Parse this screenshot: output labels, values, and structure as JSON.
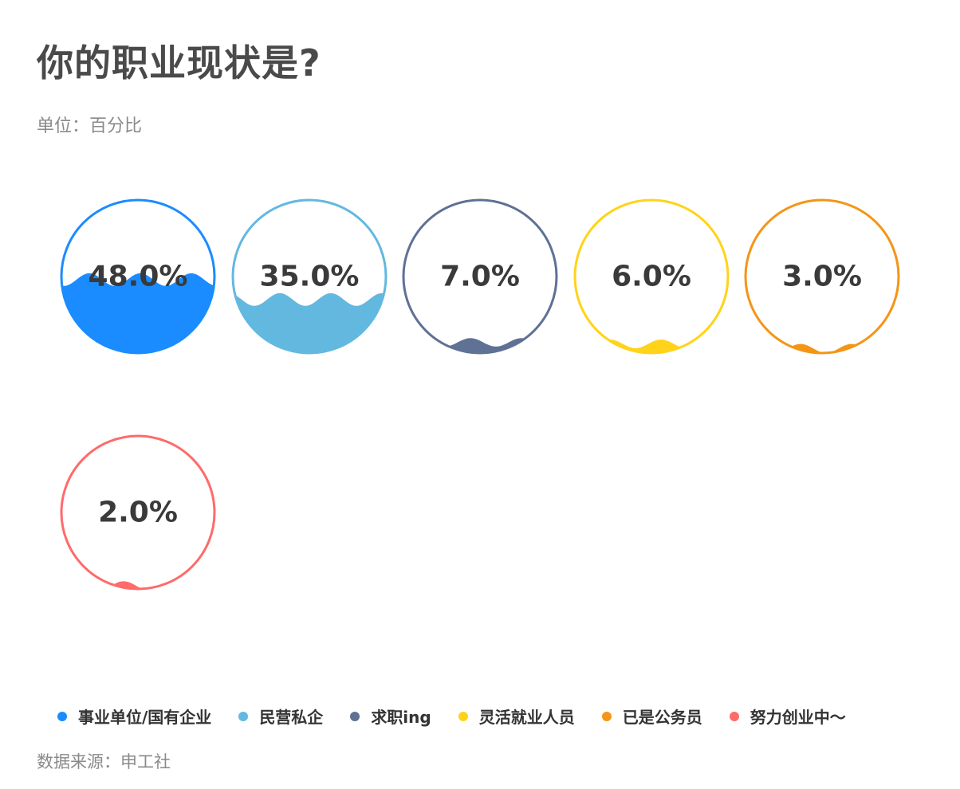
{
  "title": "你的职业现状是?",
  "subtitle": "单位：百分比",
  "source": "数据来源：申工社",
  "chart_data": {
    "type": "liquidfill",
    "unit": "百分比",
    "series": [
      {
        "name": "事业单位/国有企业",
        "value": 48.0,
        "label": "48.0%",
        "color": "#1a8cff"
      },
      {
        "name": "民营私企",
        "value": 35.0,
        "label": "35.0%",
        "color": "#63b8e0"
      },
      {
        "name": "求职ing",
        "value": 7.0,
        "label": "7.0%",
        "color": "#5f7194"
      },
      {
        "name": "灵活就业人员",
        "value": 6.0,
        "label": "6.0%",
        "color": "#ffd31a"
      },
      {
        "name": "已是公务员",
        "value": 3.0,
        "label": "3.0%",
        "color": "#f49516"
      },
      {
        "name": "努力创业中～",
        "value": 2.0,
        "label": "2.0%",
        "color": "#ff6a6a"
      }
    ]
  }
}
